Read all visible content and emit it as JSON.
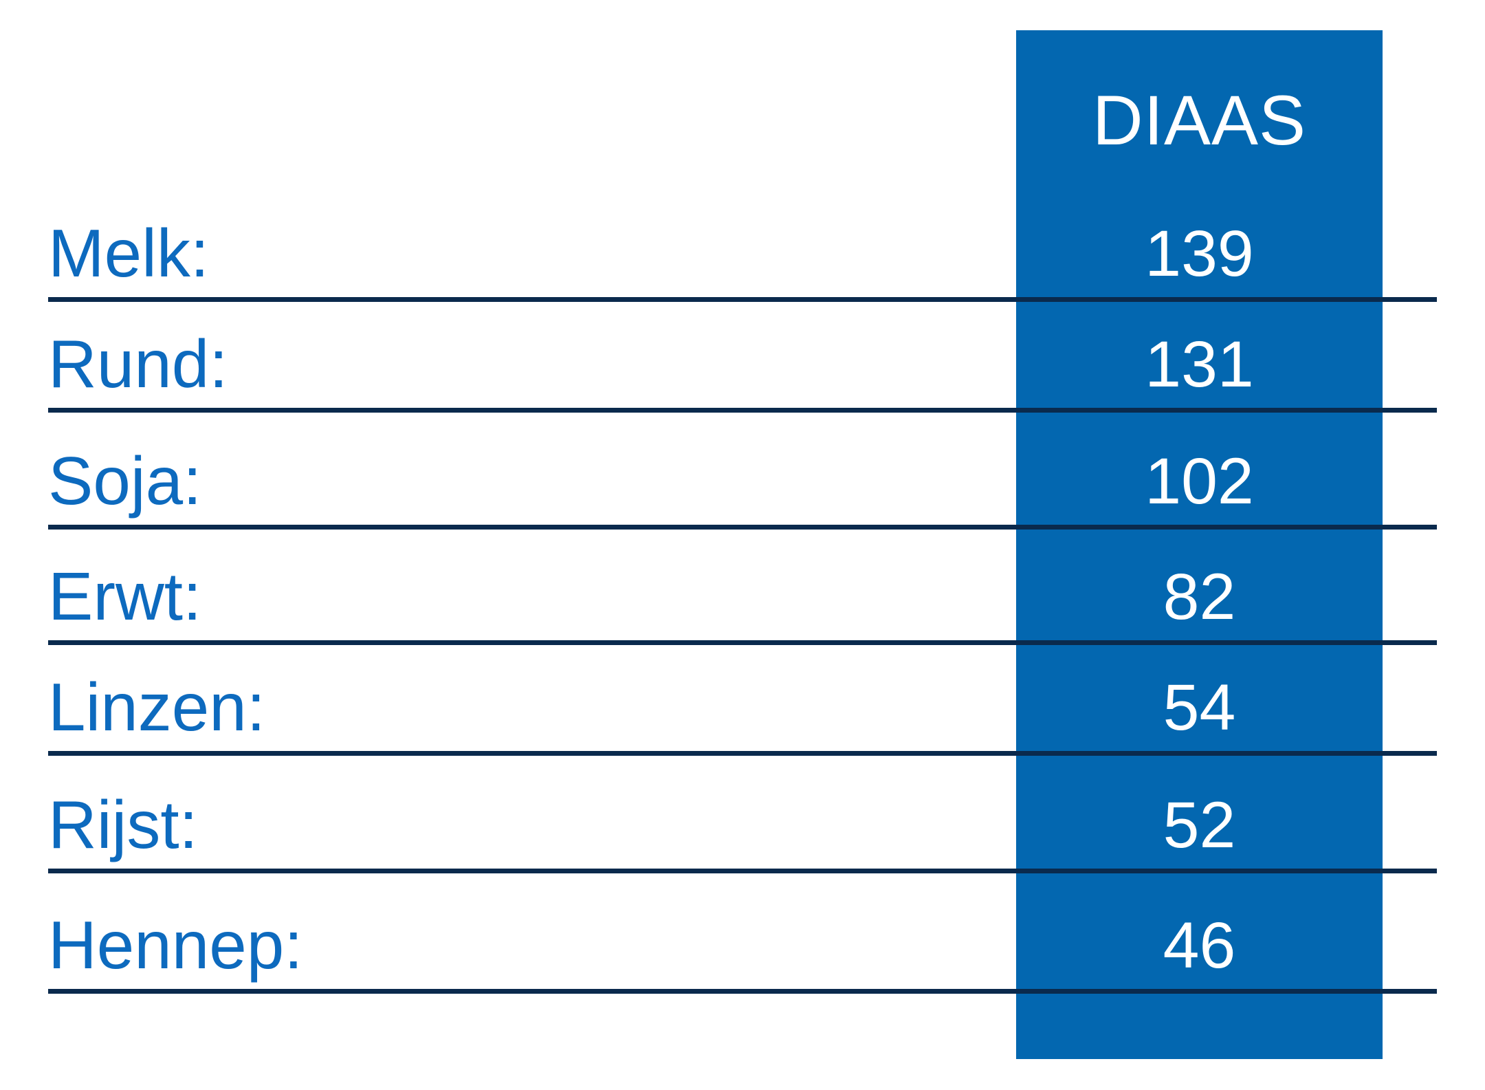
{
  "table": {
    "header": "DIAAS",
    "rows": [
      {
        "label": "Melk:",
        "value": "139"
      },
      {
        "label": "Rund:",
        "value": "131"
      },
      {
        "label": "Soja:",
        "value": "102"
      },
      {
        "label": "Erwt:",
        "value": "82"
      },
      {
        "label": "Linzen:",
        "value": "54"
      },
      {
        "label": "Rijst:",
        "value": "52"
      },
      {
        "label": "Hennep:",
        "value": "46"
      }
    ]
  },
  "colors": {
    "column_fill": "#0367b0",
    "label_text": "#0d6abe",
    "value_text": "#ffffff",
    "divider_line": "#0a2a4d",
    "background": "#ffffff"
  },
  "chart_data": {
    "type": "table",
    "title": "DIAAS",
    "categories": [
      "Melk",
      "Rund",
      "Soja",
      "Erwt",
      "Linzen",
      "Rijst",
      "Hennep"
    ],
    "values": [
      139,
      131,
      102,
      82,
      54,
      52,
      46
    ],
    "column_header": "DIAAS",
    "layout": "two-column score table, scores highlighted in blue column"
  }
}
